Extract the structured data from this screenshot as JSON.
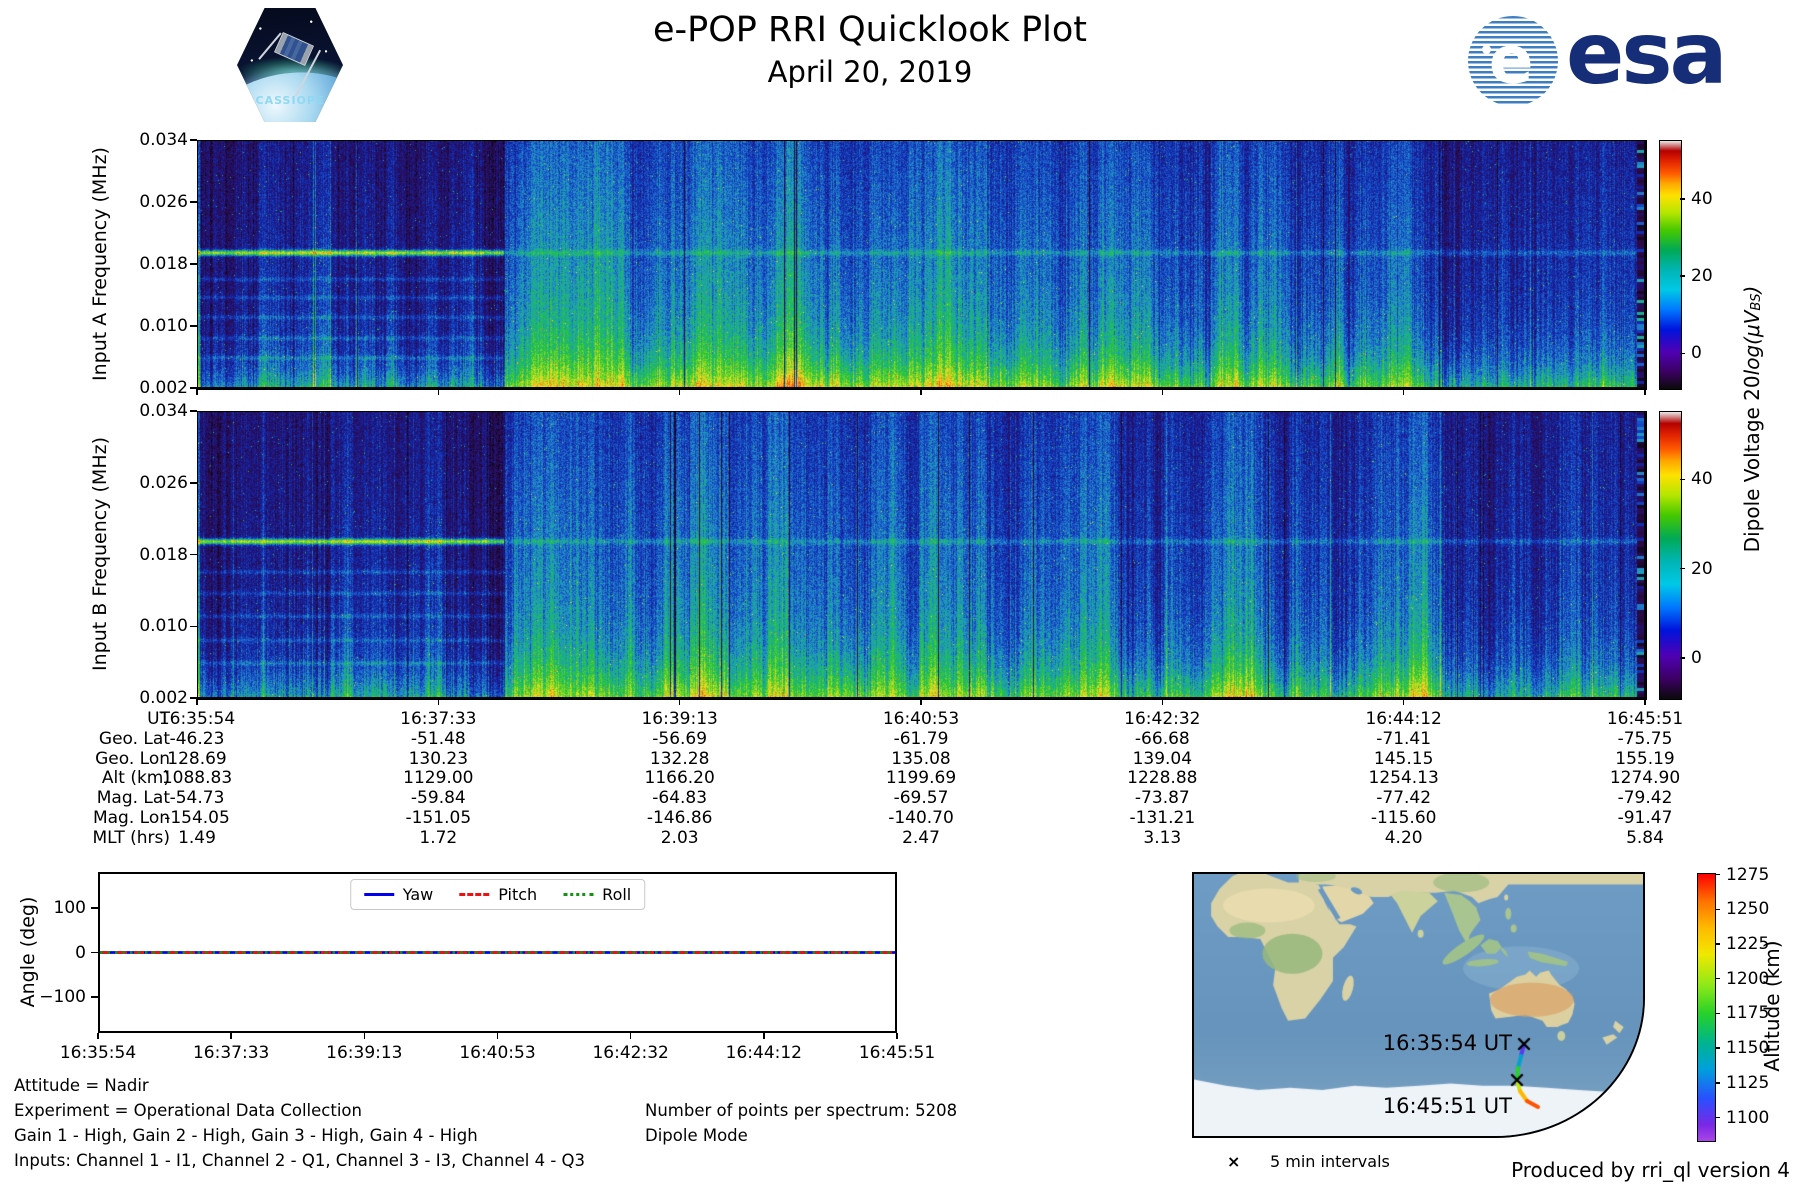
{
  "header": {
    "title": "e-POP RRI Quicklook Plot",
    "date": "April 20, 2019",
    "cassiope": "CASSIOPE",
    "esa": "esa"
  },
  "colorbar": {
    "label_prefix": "Dipole Voltage 20",
    "label_math": "log(μV",
    "label_sub": "BS",
    "label_close": ")",
    "tick_labels": [
      "40",
      "20",
      "0"
    ]
  },
  "footer_left": [
    "Attitude = Nadir",
    "Experiment = Operational Data Collection",
    "Gain 1 - High, Gain 2 - High, Gain 3 - High, Gain 4 - High",
    "Inputs: Channel 1 - I1, Channel 2 - Q1, Channel 3 - I3, Channel 4 - Q3"
  ],
  "footer_mid": [
    "Number of points per spectrum: 5208",
    "Dipole Mode"
  ],
  "map": {
    "marker_glyph": "×",
    "intervals_label": "5 min intervals"
  },
  "credit": "Produced by rri_ql version 4",
  "chart_data": [
    {
      "type": "heatmap",
      "id": "input-a-spectrogram",
      "ylabel": "Input A Frequency (MHz)",
      "ylim_mhz": [
        0.002,
        0.034
      ],
      "ytick_labels": [
        "0.034",
        "0.026",
        "0.018",
        "0.010",
        "0.002"
      ],
      "x_start": "16:35:54",
      "x_end": "16:45:51",
      "colorbar_ticks": [
        40,
        20,
        0
      ],
      "colorbar_range": [
        55,
        -9
      ],
      "colormap": "nipy_spectral",
      "note": "HF noise spectrogram: quiet until ~16:38 with narrowband line near 0.019 MHz, then strong broadband emission columns"
    },
    {
      "type": "heatmap",
      "id": "input-b-spectrogram",
      "ylabel": "Input B Frequency (MHz)",
      "ylim_mhz": [
        0.002,
        0.034
      ],
      "ytick_labels": [
        "0.034",
        "0.026",
        "0.018",
        "0.010",
        "0.002"
      ],
      "x_start": "16:35:54",
      "x_end": "16:45:51",
      "colorbar_ticks": [
        40,
        20,
        0
      ],
      "colorbar_range": [
        55,
        -9
      ],
      "colormap": "nipy_spectral",
      "note": "same structure as Input A"
    },
    {
      "type": "table",
      "id": "ephemeris",
      "rows": [
        {
          "label": "UT",
          "values": [
            "16:35:54",
            "16:37:33",
            "16:39:13",
            "16:40:53",
            "16:42:32",
            "16:44:12",
            "16:45:51"
          ]
        },
        {
          "label": "Geo. Lat",
          "values": [
            "-46.23",
            "-51.48",
            "-56.69",
            "-61.79",
            "-66.68",
            "-71.41",
            "-75.75"
          ]
        },
        {
          "label": "Geo. Lon",
          "values": [
            "128.69",
            "130.23",
            "132.28",
            "135.08",
            "139.04",
            "145.15",
            "155.19"
          ]
        },
        {
          "label": "Alt (km)",
          "values": [
            "1088.83",
            "1129.00",
            "1166.20",
            "1199.69",
            "1228.88",
            "1254.13",
            "1274.90"
          ]
        },
        {
          "label": "Mag. Lat",
          "values": [
            "-54.73",
            "-59.84",
            "-64.83",
            "-69.57",
            "-73.87",
            "-77.42",
            "-79.42"
          ]
        },
        {
          "label": "Mag. Lon",
          "values": [
            "-154.05",
            "-151.05",
            "-146.86",
            "-140.70",
            "-131.21",
            "-115.60",
            "-91.47"
          ]
        },
        {
          "label": "MLT (hrs)",
          "values": [
            "1.49",
            "1.72",
            "2.03",
            "2.47",
            "3.13",
            "4.20",
            "5.84"
          ]
        }
      ]
    },
    {
      "type": "line",
      "id": "attitude-angles",
      "ylabel": "Angle (deg)",
      "ylim": [
        -180,
        180
      ],
      "yticks": [
        100,
        0,
        -100
      ],
      "ytick_labels": [
        "100",
        "0",
        "−100"
      ],
      "x": [
        "16:35:54",
        "16:37:33",
        "16:39:13",
        "16:40:53",
        "16:42:32",
        "16:44:12",
        "16:45:51"
      ],
      "series": [
        {
          "name": "Yaw",
          "color": "#0000ee",
          "style": "solid",
          "values": [
            0,
            0,
            0,
            0,
            0,
            0,
            0
          ]
        },
        {
          "name": "Pitch",
          "color": "#ee1111",
          "style": "dashed",
          "values": [
            0,
            0,
            0,
            0,
            0,
            0,
            0
          ]
        },
        {
          "name": "Roll",
          "color": "#109410",
          "style": "dotted",
          "values": [
            0,
            0,
            0,
            0,
            0,
            0,
            0
          ]
        }
      ],
      "legend_position": "upper center"
    },
    {
      "type": "scatter",
      "id": "ground-track",
      "points": [
        {
          "ut": "16:35:54",
          "lat": -46.23,
          "lon": 128.69,
          "alt_km": 1088.83
        },
        {
          "ut": "16:37:33",
          "lat": -51.48,
          "lon": 130.23,
          "alt_km": 1129.0
        },
        {
          "ut": "16:39:13",
          "lat": -56.69,
          "lon": 132.28,
          "alt_km": 1166.2
        },
        {
          "ut": "16:40:53",
          "lat": -61.79,
          "lon": 135.08,
          "alt_km": 1199.69
        },
        {
          "ut": "16:42:32",
          "lat": -66.68,
          "lon": 139.04,
          "alt_km": 1228.88
        },
        {
          "ut": "16:44:12",
          "lat": -71.41,
          "lon": 145.15,
          "alt_km": 1254.13
        },
        {
          "ut": "16:45:51",
          "lat": -75.75,
          "lon": 155.19,
          "alt_km": 1274.9
        }
      ],
      "start_label": "16:35:54 UT",
      "end_label": "16:45:51 UT",
      "marker_note": "x marker every 5 min",
      "colorbar": {
        "label": "Altitude (km)",
        "ticks": [
          1275,
          1250,
          1225,
          1200,
          1175,
          1150,
          1125,
          1100
        ],
        "range": [
          1083,
          1276
        ],
        "colormap": "rainbow"
      }
    }
  ]
}
